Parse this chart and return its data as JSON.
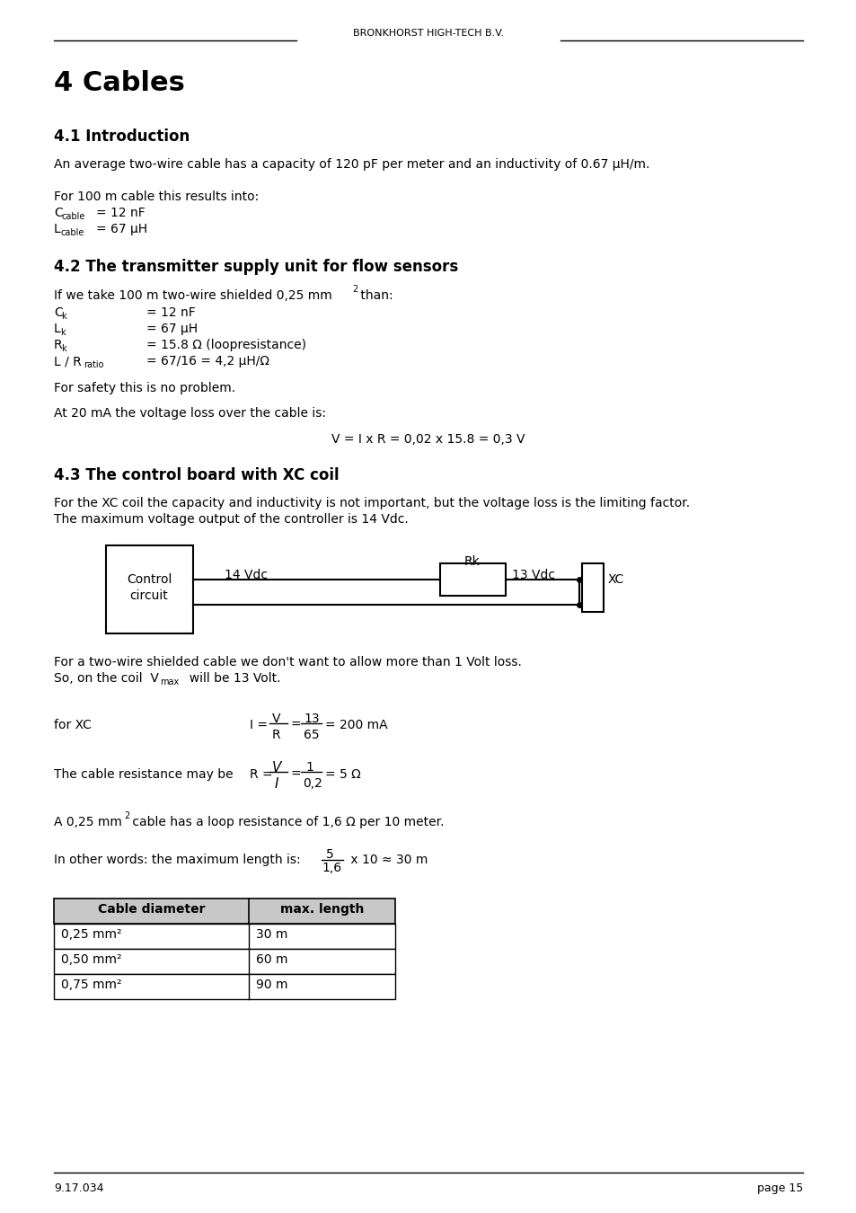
{
  "header_text": "BRONKHORST HIGH-TECH B.V.",
  "chapter_title": "4 Cables",
  "section_41_title": "4.1 Introduction",
  "section_42_title": "4.2 The transmitter supply unit for flow sensors",
  "section_43_title": "4.3 The control board with XC coil",
  "footer_left": "9.17.034",
  "footer_right": "page 15",
  "bg_color": "#ffffff",
  "text_color": "#000000"
}
